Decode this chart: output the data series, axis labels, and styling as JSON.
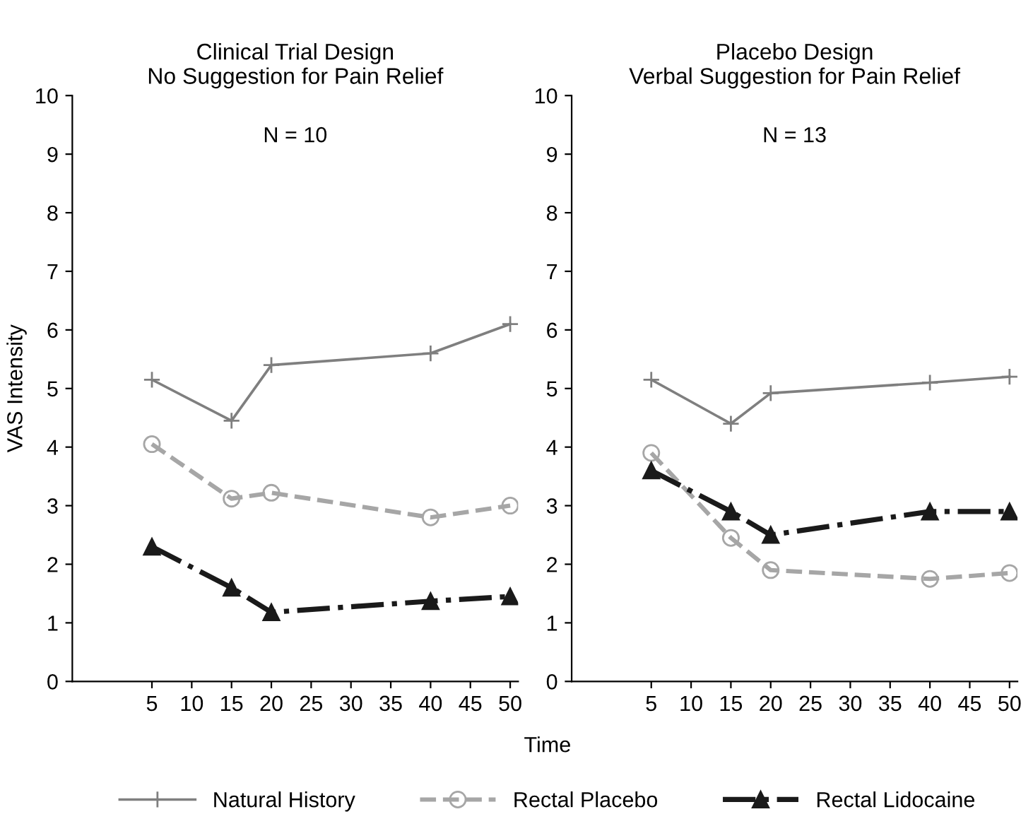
{
  "chart_data": [
    {
      "type": "line",
      "title": "Clinical Trial Design\nNo Suggestion for Pain Relief",
      "ylabel": "VAS Intensity",
      "xlabel": "Time",
      "annotations": [
        "N = 10"
      ],
      "x": [
        5,
        15,
        20,
        40,
        50
      ],
      "xlim": [
        -5,
        51
      ],
      "xticks": [
        5,
        10,
        15,
        20,
        25,
        30,
        35,
        40,
        45,
        50
      ],
      "ylim": [
        0,
        10
      ],
      "yticks": [
        0,
        1,
        2,
        3,
        4,
        5,
        6,
        7,
        8,
        9,
        10
      ],
      "grid": false,
      "legend": "bottom",
      "series": [
        {
          "name": "Natural History",
          "color": "#7f7f7f",
          "marker": "cross",
          "line_style": "solid",
          "values": [
            5.15,
            4.45,
            5.4,
            5.6,
            6.1
          ]
        },
        {
          "name": "Rectal Placebo",
          "color": "#a6a6a6",
          "marker": "circle",
          "line_style": "dashed",
          "values": [
            4.05,
            3.12,
            3.22,
            2.8,
            3.0
          ]
        },
        {
          "name": "Rectal Lidocaine",
          "color": "#1a1a1a",
          "marker": "triangle",
          "line_style": "dashdot",
          "values": [
            2.3,
            1.6,
            1.18,
            1.37,
            1.45
          ]
        }
      ]
    },
    {
      "type": "line",
      "title": "Placebo Design\nVerbal Suggestion for Pain Relief",
      "annotations": [
        "N = 13"
      ],
      "x": [
        5,
        15,
        20,
        40,
        50
      ],
      "xlim": [
        -5,
        51
      ],
      "xticks": [
        5,
        10,
        15,
        20,
        25,
        30,
        35,
        40,
        45,
        50
      ],
      "ylim": [
        0,
        10
      ],
      "yticks": [
        0,
        1,
        2,
        3,
        4,
        5,
        6,
        7,
        8,
        9,
        10
      ],
      "grid": false,
      "series": [
        {
          "color": "#7f7f7f",
          "marker": "cross",
          "line_style": "solid",
          "values": [
            5.15,
            4.4,
            4.92,
            5.1,
            5.2
          ]
        },
        {
          "color": "#a6a6a6",
          "marker": "circle",
          "line_style": "dashed",
          "values": [
            3.9,
            2.45,
            1.9,
            1.75,
            1.85
          ]
        },
        {
          "color": "#1a1a1a",
          "marker": "triangle",
          "line_style": "dashdot",
          "values": [
            3.6,
            2.9,
            2.5,
            2.9,
            2.9
          ]
        }
      ]
    }
  ]
}
